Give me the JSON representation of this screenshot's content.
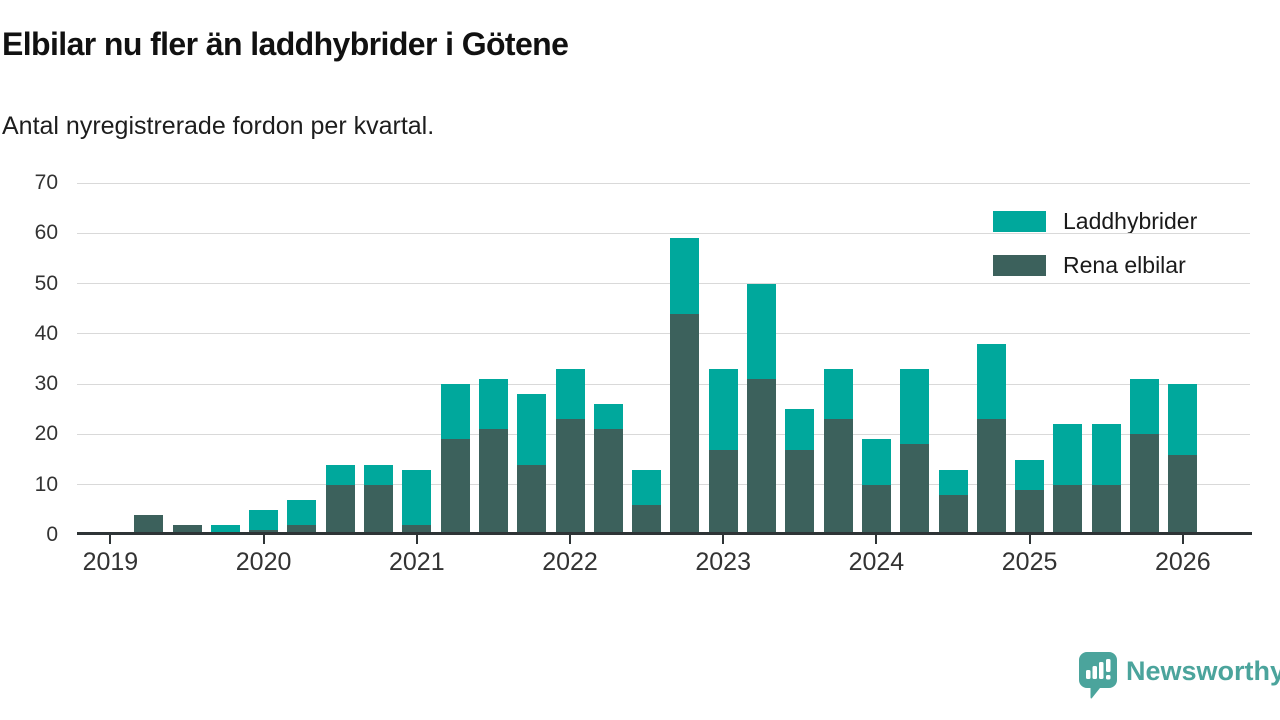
{
  "header": {
    "title": "Elbilar nu fler än laddhybrider i Götene",
    "subtitle": "Antal nyregistrerade fordon per kvartal."
  },
  "legend": {
    "items": [
      {
        "label": "Laddhybrider",
        "color": "#00a89c"
      },
      {
        "label": "Rena elbilar",
        "color": "#3c615c"
      }
    ]
  },
  "footer": {
    "brand": "Newsworthy",
    "brand_color": "#4ba49c",
    "logo_icon": "speech-bubble-bar-chart-icon"
  },
  "chart_data": {
    "type": "bar",
    "stacked": true,
    "title": "Elbilar nu fler än laddhybrider i Götene",
    "subtitle": "Antal nyregistrerade fordon per kvartal.",
    "xlabel": "",
    "ylabel": "",
    "ylim": [
      0,
      70
    ],
    "yticks": [
      0,
      10,
      20,
      30,
      40,
      50,
      60,
      70
    ],
    "grid": "horizontal",
    "legend_position": "top-right",
    "x": [
      "2019 Q1",
      "2019 Q2",
      "2019 Q3",
      "2019 Q4",
      "2020 Q1",
      "2020 Q2",
      "2020 Q3",
      "2020 Q4",
      "2021 Q1",
      "2021 Q2",
      "2021 Q3",
      "2021 Q4",
      "2022 Q1",
      "2022 Q2",
      "2022 Q3",
      "2022 Q4",
      "2023 Q1",
      "2023 Q2",
      "2023 Q3",
      "2023 Q4",
      "2024 Q1",
      "2024 Q2",
      "2024 Q3",
      "2024 Q4",
      "2025 Q1",
      "2025 Q2",
      "2025 Q3",
      "2025 Q4",
      "2026 Q1"
    ],
    "year_ticks": [
      "2019",
      "2020",
      "2021",
      "2022",
      "2023",
      "2024",
      "2025",
      "2026"
    ],
    "series": [
      {
        "name": "Rena elbilar",
        "color": "#3c615c",
        "values": [
          0,
          4,
          2,
          0,
          1,
          2,
          10,
          10,
          2,
          19,
          21,
          14,
          23,
          21,
          6,
          44,
          17,
          31,
          17,
          23,
          10,
          18,
          8,
          23,
          9,
          10,
          10,
          20,
          16
        ]
      },
      {
        "name": "Laddhybrider",
        "color": "#00a89c",
        "values": [
          0,
          0,
          0,
          2,
          4,
          5,
          4,
          4,
          11,
          11,
          10,
          14,
          10,
          5,
          7,
          15,
          16,
          19,
          8,
          10,
          9,
          15,
          5,
          15,
          6,
          12,
          12,
          11,
          14
        ]
      }
    ],
    "totals": [
      0,
      4,
      2,
      2,
      5,
      7,
      14,
      14,
      13,
      30,
      31,
      28,
      33,
      26,
      13,
      59,
      33,
      50,
      25,
      33,
      19,
      33,
      13,
      38,
      15,
      22,
      22,
      31,
      30
    ],
    "axis_colors": {
      "grid": "#d9d9d9",
      "axis": "#2e3436",
      "tick_text": "#333333"
    }
  }
}
